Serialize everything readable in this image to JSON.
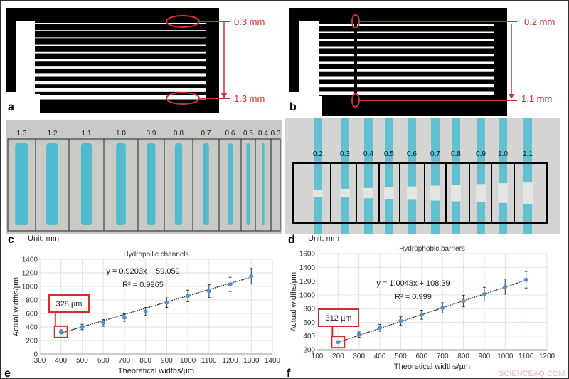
{
  "panels": {
    "a": {
      "label": "a",
      "top_annotation": "0.3 mm",
      "bottom_annotation": "1.3 mm"
    },
    "b": {
      "label": "b",
      "top_annotation": "0.2 mm",
      "bottom_annotation": "1.1 mm"
    },
    "c": {
      "label": "c",
      "unit": "Unit: mm",
      "widths": [
        "1.3",
        "1.2",
        "1.1",
        "1.0",
        "0.9",
        "0.8",
        "0.7",
        "0.6",
        "0.5",
        "0.4",
        "0.3"
      ]
    },
    "d": {
      "label": "d",
      "unit": "Unit: mm",
      "widths": [
        "0.2",
        "0.3",
        "0.4",
        "0.5",
        "0.6",
        "0.7",
        "0.8",
        "0.9",
        "1.0",
        "1.1"
      ]
    },
    "e": {
      "label": "e"
    },
    "f": {
      "label": "f"
    }
  },
  "colors": {
    "annotation": "#d03030",
    "dye": "#3bb8d0",
    "point": "#5b8fc9"
  },
  "watermark": "SCIENCEAQ.COM",
  "chart_data": [
    {
      "type": "scatter",
      "title": "Hydrophilic channels",
      "xlabel": "Theoretical widths/µm",
      "ylabel": "Actual widths/µm",
      "xlim": [
        300,
        1400
      ],
      "ylim": [
        0,
        1400
      ],
      "xticks": [
        300,
        400,
        500,
        600,
        700,
        800,
        900,
        1000,
        1100,
        1200,
        1300,
        1400
      ],
      "yticks": [
        0,
        200,
        400,
        600,
        800,
        1000,
        1200,
        1400
      ],
      "grid": true,
      "x": [
        400,
        500,
        600,
        700,
        800,
        900,
        1000,
        1100,
        1200,
        1300
      ],
      "y": [
        328,
        400,
        460,
        540,
        630,
        760,
        860,
        930,
        1030,
        1150
      ],
      "error": [
        30,
        40,
        50,
        55,
        60,
        70,
        85,
        95,
        105,
        115
      ],
      "trendline": {
        "slope": 0.9203,
        "intercept": -59.059,
        "equation": "y = 0.9203x − 59.059",
        "r2": "R² = 0.9965"
      },
      "callout": "328 µm"
    },
    {
      "type": "scatter",
      "title": "Hydrophobic barriers",
      "xlabel": "Theoretical widths/µm",
      "ylabel": "Actual widths/µm",
      "xlim": [
        100,
        1200
      ],
      "ylim": [
        200,
        1600
      ],
      "xticks": [
        100,
        200,
        300,
        400,
        500,
        600,
        700,
        800,
        900,
        1000,
        1100,
        1200
      ],
      "yticks": [
        200,
        400,
        600,
        800,
        1000,
        1200,
        1400,
        1600
      ],
      "grid": true,
      "x": [
        200,
        300,
        400,
        500,
        600,
        700,
        800,
        900,
        1000,
        1100
      ],
      "y": [
        312,
        420,
        520,
        620,
        710,
        810,
        910,
        1010,
        1120,
        1220
      ],
      "error": [
        20,
        40,
        50,
        60,
        65,
        75,
        85,
        100,
        110,
        120
      ],
      "trendline": {
        "slope": 1.0048,
        "intercept": 108.39,
        "equation": "y = 1.0048x + 108.39",
        "r2": "R² = 0.999"
      },
      "callout": "312 µm"
    }
  ]
}
